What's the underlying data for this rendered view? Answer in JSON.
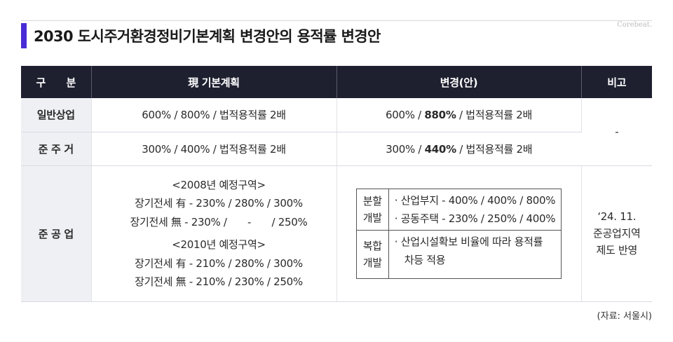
{
  "brand": "Corebeat.",
  "title": "2030 도시주거환경정비기본계획 변경안의 용적률 변경안",
  "colors": {
    "accent": "#4b2bd6",
    "header_bg": "#1e2030",
    "rowhead_bg": "#eff0f4"
  },
  "table": {
    "headers": [
      "구　　분",
      "現 기본계획",
      "변경(안)",
      "비고"
    ],
    "rows": [
      {
        "label": "일반상업",
        "current": "600% / 800% / 법적용적률 2배",
        "change_pre": "600% / ",
        "change_bold": "880%",
        "change_post": " / 법적용적률 2배"
      },
      {
        "label": "준 주 거",
        "current": "300% / 400% / 법적용적률 2배",
        "change_pre": "300% / ",
        "change_bold": "440%",
        "change_post": " / 법적용적률 2배"
      }
    ],
    "note_general": "-",
    "semi_industrial": {
      "label": "준 공 업",
      "current_lines_a": [
        "<2008년 예정구역>",
        "장기전세 有 - 230% / 280% / 300%",
        "장기전세 無 - 230% /　　-　　/ 250%"
      ],
      "current_lines_b": [
        "<2010년 예정구역>",
        "장기전세 有 - 210% / 280% / 300%",
        "장기전세 無 - 210% / 230% / 250%"
      ],
      "change": {
        "split_label": [
          "분할",
          "개발"
        ],
        "split_items": [
          "· 산업부지 - 400% / 400% / 800%",
          "· 공동주택 - 230% / 250% / 400%"
        ],
        "mixed_label": [
          "복합",
          "개발"
        ],
        "mixed_items": [
          "· 산업시설확보 비율에 따라 용적률",
          "차등 적용"
        ]
      },
      "note_lines": [
        "‘24. 11.",
        "준공업지역",
        "제도 반영"
      ]
    }
  },
  "source": "(자료: 서울시)"
}
